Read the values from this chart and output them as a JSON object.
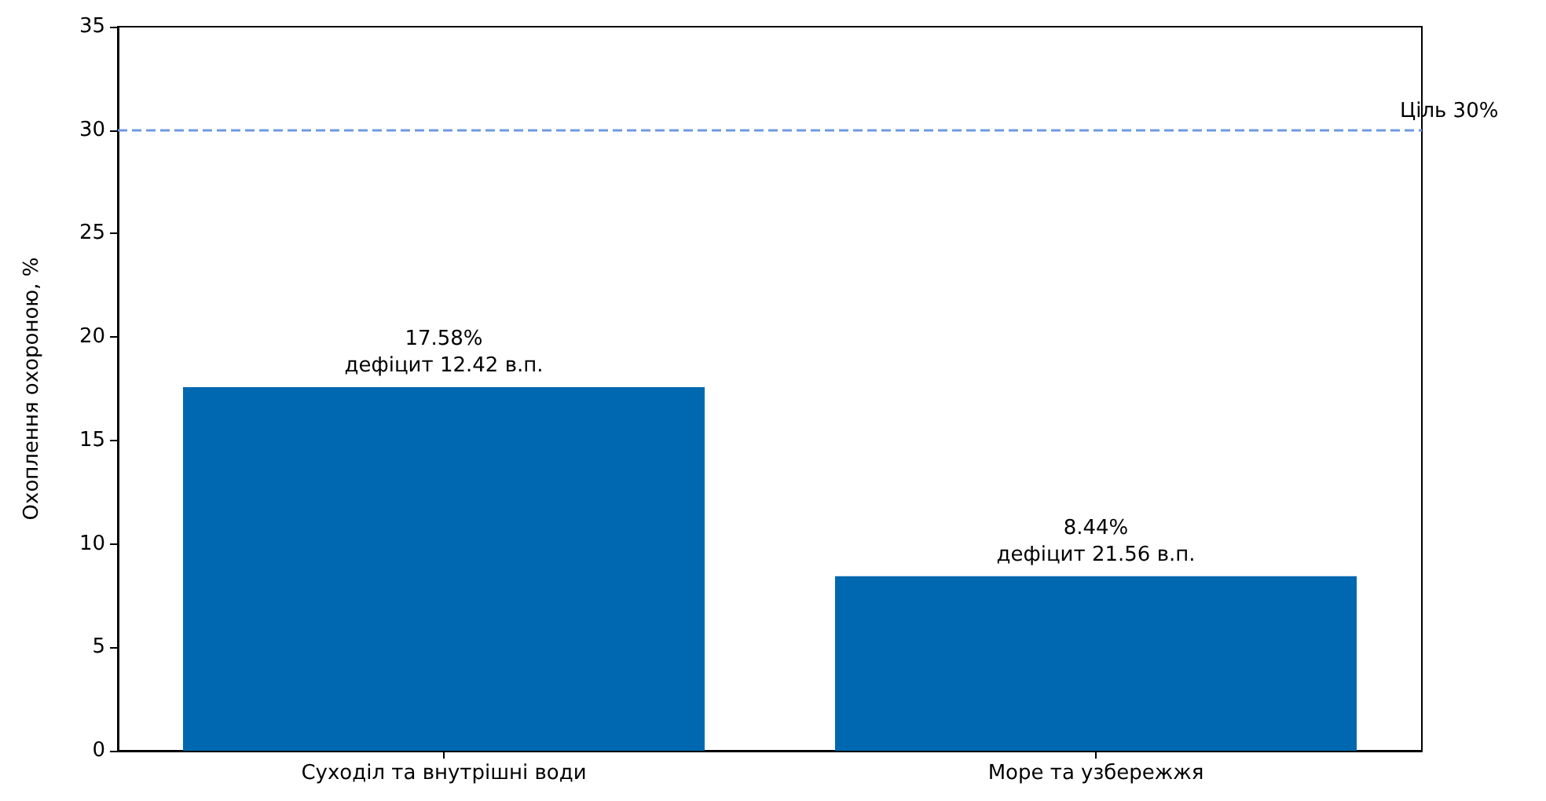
{
  "chart_data": {
    "type": "bar",
    "ylabel": "Охоплення охороною, %",
    "categories": [
      "Суходіл та внутрішні води",
      "Море та узбережжя"
    ],
    "values": [
      17.58,
      8.44
    ],
    "color": "#0068b0",
    "value_labels": [
      "17.58%\nдефіцит 12.42 в.п.",
      "8.44%\nдефіцит 21.56 в.п."
    ],
    "ylim": [
      0,
      35
    ],
    "yticks": [
      0,
      5,
      10,
      15,
      20,
      25,
      30,
      35
    ],
    "grid": false,
    "ref_lines": [
      {
        "axis": "y",
        "value": 30,
        "label": "Ціль 30%",
        "color": "#6f9ae0",
        "line_style": "dashed"
      }
    ]
  }
}
